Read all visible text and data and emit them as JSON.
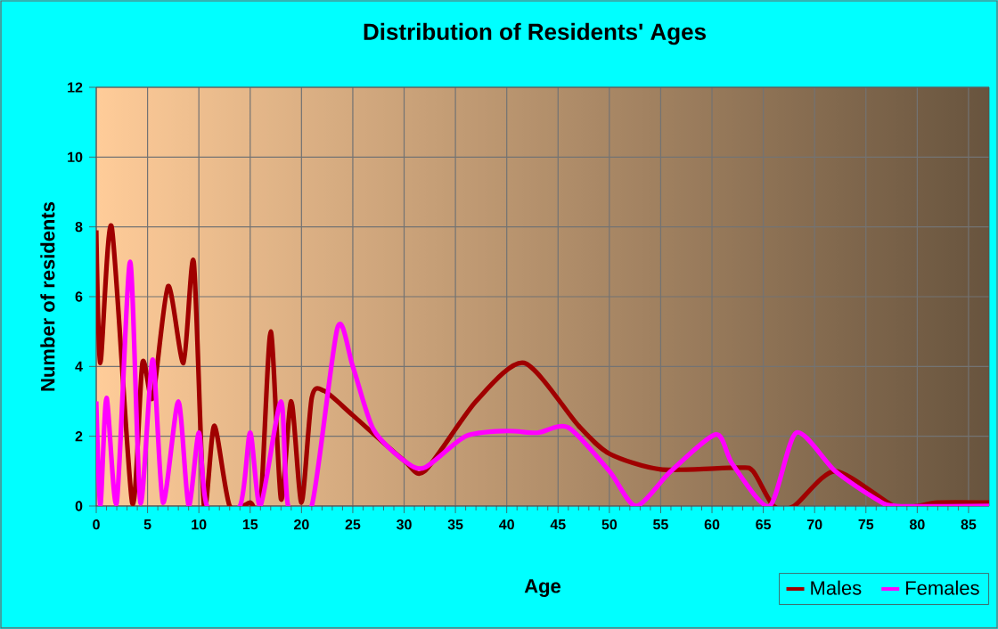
{
  "chart_data": {
    "type": "line",
    "title": "Distribution of Residents' Ages",
    "xlabel": "Age",
    "ylabel": "Number of residents",
    "xlim": [
      0,
      87
    ],
    "ylim": [
      0,
      12
    ],
    "xticks": [
      0,
      5,
      10,
      15,
      20,
      25,
      30,
      35,
      40,
      45,
      50,
      55,
      60,
      65,
      70,
      75,
      80,
      85
    ],
    "yticks": [
      0,
      2,
      4,
      6,
      8,
      10,
      12
    ],
    "grid": true,
    "legend": "bottom right",
    "series": [
      {
        "name": "Males",
        "color": "#a00000",
        "x": [
          0,
          0.4,
          1.5,
          3.5,
          4.5,
          5.5,
          7,
          8.5,
          9.5,
          10.5,
          11.5,
          13,
          15,
          16,
          17,
          18,
          19,
          20,
          21,
          22.2,
          25,
          30,
          32,
          37,
          41.7,
          47,
          50,
          55,
          62.5,
          64,
          66,
          68,
          72,
          77.7,
          80,
          82,
          87
        ],
        "values": [
          7.9,
          4.1,
          8,
          0.1,
          4.1,
          3.1,
          6.3,
          4.1,
          7,
          0,
          2.3,
          0,
          0.1,
          0,
          5,
          0.2,
          3,
          0.1,
          3.1,
          3.3,
          2.6,
          1.3,
          1,
          3,
          4.1,
          2.3,
          1.5,
          1.05,
          1.1,
          1,
          0,
          0,
          1,
          0,
          0,
          0.1,
          0.1
        ]
      },
      {
        "name": "Females",
        "color": "#ff00ff",
        "x": [
          0,
          0.4,
          1,
          2,
          3.3,
          4.3,
          5.5,
          6.5,
          8,
          9,
          10,
          10.8,
          14,
          15,
          16,
          18,
          18.7,
          21,
          23.5,
          25,
          27,
          30,
          32,
          36,
          40,
          43,
          46,
          50,
          52.6,
          56,
          60.4,
          62,
          65.6,
          68.2,
          72,
          76,
          78,
          87
        ],
        "values": [
          3,
          0,
          3.1,
          0.1,
          7,
          0.1,
          4.2,
          0.1,
          3,
          0,
          2.1,
          0,
          0,
          2.1,
          0,
          3,
          0,
          0,
          5.1,
          4,
          2.2,
          1.3,
          1.1,
          2,
          2.15,
          2.1,
          2.25,
          1,
          0,
          1,
          2.05,
          1.2,
          0,
          2.1,
          1,
          0.2,
          0,
          0
        ]
      }
    ]
  }
}
